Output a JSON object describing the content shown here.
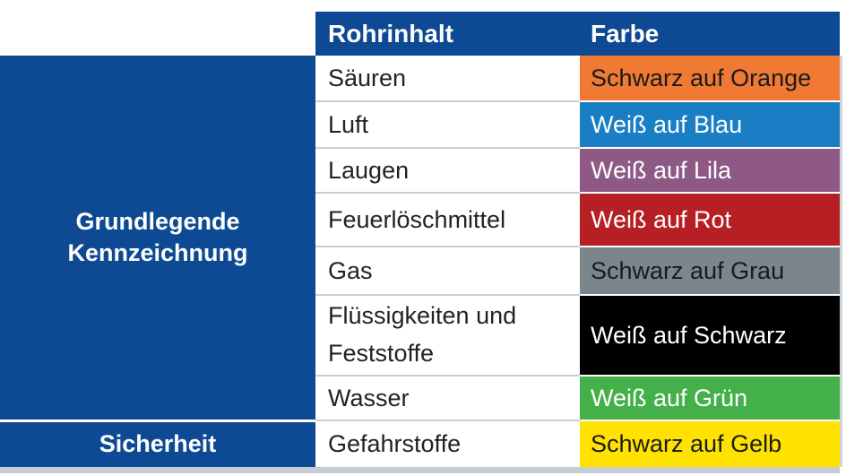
{
  "header": {
    "col_inhalt": "Rohrinhalt",
    "col_farbe": "Farbe"
  },
  "groups": {
    "basic_line1": "Grundlegende",
    "basic_line2": "Kennzeichnung",
    "safety": "Sicherheit"
  },
  "rows": [
    {
      "inhalt": "Säuren",
      "farbe": "Schwarz auf Orange",
      "bg": "#f07a33",
      "fg": "#1a1a1a"
    },
    {
      "inhalt": "Luft",
      "farbe": "Weiß auf Blau",
      "bg": "#1a7ec4",
      "fg": "#ffffff"
    },
    {
      "inhalt": "Laugen",
      "farbe": "Weiß auf Lila",
      "bg": "#8e5a85",
      "fg": "#ffffff"
    },
    {
      "inhalt": "Feuerlöschmittel",
      "farbe": "Weiß auf Rot",
      "bg": "#b61f24",
      "fg": "#ffffff"
    },
    {
      "inhalt": "Gas",
      "farbe": "Schwarz auf Grau",
      "bg": "#7b858c",
      "fg": "#1a1a1a"
    },
    {
      "inhalt_line1": "Flüssigkeiten und",
      "inhalt_line2": "Feststoffe",
      "farbe": "Weiß auf Schwarz",
      "bg": "#000000",
      "fg": "#ffffff"
    },
    {
      "inhalt": "Wasser",
      "farbe": "Weiß auf Grün",
      "bg": "#43b04a",
      "fg": "#ffffff"
    },
    {
      "inhalt": "Gefahrstoffe",
      "farbe": "Schwarz auf Gelb",
      "bg": "#ffe200",
      "fg": "#1a1a1a"
    }
  ]
}
